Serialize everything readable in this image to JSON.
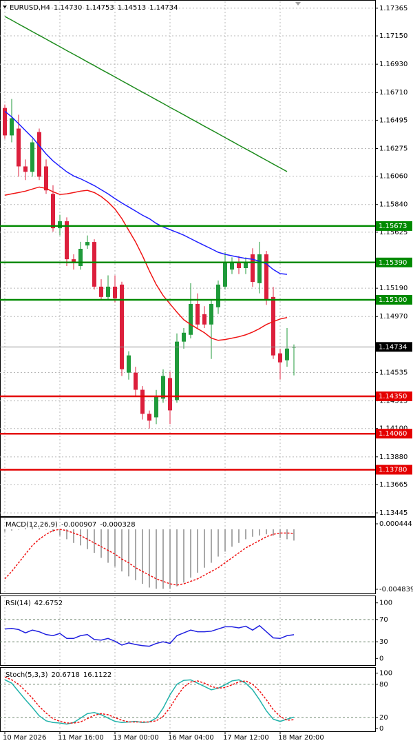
{
  "chart_data": [
    {
      "type": "candlestick",
      "title": "EURUSD,H4",
      "quote_labels": [
        "1.14730",
        "1.14753",
        "1.14513",
        "1.14734"
      ],
      "categories": [
        "10 Mar 2026",
        null,
        null,
        null,
        null,
        null,
        null,
        null,
        "11 Mar 16:00",
        null,
        null,
        null,
        null,
        null,
        null,
        null,
        "13 Mar 00:00",
        null,
        null,
        null,
        null,
        null,
        null,
        null,
        "16 Mar 04:00",
        null,
        null,
        null,
        null,
        null,
        null,
        null,
        "17 Mar 12:00",
        null,
        null,
        null,
        null,
        null,
        null,
        null,
        "18 Mar 20:00",
        null,
        null
      ],
      "open": [
        1.1659,
        1.16377,
        1.1643,
        1.16136,
        1.16094,
        1.16403,
        1.16136,
        1.15923,
        1.15656,
        1.1571,
        1.15415,
        1.15362,
        1.15522,
        1.15549,
        1.15202,
        1.15122,
        1.15202,
        1.15218,
        1.14534,
        1.14534,
        1.14401,
        1.14214,
        1.14187,
        1.14332,
        1.14492,
        1.14321,
        1.14775,
        1.14828,
        1.15068,
        1.14988,
        1.14908,
        1.15042,
        1.15202,
        1.15335,
        1.15389,
        1.15346,
        1.15453,
        1.15229,
        1.15453,
        1.15122,
        1.14684,
        1.1463,
        1.1473
      ],
      "high": [
        1.16617,
        1.1666,
        1.16537,
        1.1619,
        1.1635,
        1.1643,
        1.1619,
        1.1599,
        1.1576,
        1.1574,
        1.15453,
        1.1555,
        1.156,
        1.1557,
        1.1526,
        1.1529,
        1.1529,
        1.1524,
        1.147,
        1.1458,
        1.1443,
        1.1424,
        1.144,
        1.1456,
        1.1454,
        1.14839,
        1.1488,
        1.15229,
        1.1515,
        1.1505,
        1.151,
        1.1525,
        1.1547,
        1.1543,
        1.1544,
        1.1543,
        1.155,
        1.1555,
        1.1548,
        1.152,
        1.1472,
        1.1488,
        1.14753
      ],
      "low": [
        1.1635,
        1.16323,
        1.16056,
        1.1603,
        1.16056,
        1.1603,
        1.15923,
        1.1563,
        1.156,
        1.15362,
        1.15335,
        1.15335,
        1.15496,
        1.1518,
        1.151,
        1.151,
        1.1508,
        1.14508,
        1.1448,
        1.14348,
        1.1417,
        1.141,
        1.14134,
        1.143,
        1.14134,
        1.143,
        1.1472,
        1.148,
        1.1488,
        1.1488,
        1.14641,
        1.1499,
        1.1518,
        1.153,
        1.153,
        1.153,
        1.152,
        1.1515,
        1.1506,
        1.14641,
        1.14481,
        1.1458,
        1.14513
      ],
      "close": [
        1.16377,
        1.1651,
        1.16136,
        1.16094,
        1.16323,
        1.16056,
        1.1595,
        1.15656,
        1.1571,
        1.15415,
        1.15389,
        1.15496,
        1.15549,
        1.15202,
        1.15122,
        1.15202,
        1.15111,
        1.14561,
        1.14668,
        1.14401,
        1.14214,
        1.14161,
        1.14348,
        1.14508,
        1.14241,
        1.14775,
        1.14844,
        1.15068,
        1.14908,
        1.14908,
        1.15068,
        1.15218,
        1.15389,
        1.15389,
        1.15346,
        1.15389,
        1.15239,
        1.15453,
        1.15095,
        1.14668,
        1.14614,
        1.14721,
        1.14734
      ],
      "up_color": "#1f9a3a",
      "down_color": "#dc1f3c",
      "series": [
        {
          "color": "#1e8c1e",
          "values": [
            1.17301,
            1.17272,
            1.17242,
            1.17213,
            1.17183,
            1.17154,
            1.17125,
            1.17095,
            1.17066,
            1.17036,
            1.17007,
            1.16978,
            1.16948,
            1.16919,
            1.16889,
            1.1686,
            1.16831,
            1.16801,
            1.16772,
            1.16742,
            1.16713,
            1.16684,
            1.16654,
            1.16625,
            1.16595,
            1.16566,
            1.16537,
            1.16507,
            1.16478,
            1.16448,
            1.16419,
            1.1639,
            1.1636,
            1.16331,
            1.16301,
            1.16272,
            1.16243,
            1.16213,
            1.16184,
            1.16154,
            1.16125,
            1.16096,
            null
          ]
        },
        {
          "color": "#2020ff",
          "values": [
            1.16564,
            1.16521,
            1.16468,
            1.16414,
            1.16361,
            1.16297,
            1.16233,
            1.16179,
            1.16136,
            1.16094,
            1.16062,
            1.1604,
            1.16014,
            1.15987,
            1.15955,
            1.15923,
            1.15886,
            1.15852,
            1.15821,
            1.15789,
            1.15757,
            1.1573,
            1.15693,
            1.15666,
            1.15645,
            1.15624,
            1.15602,
            1.15575,
            1.15548,
            1.15522,
            1.15496,
            1.15469,
            1.15453,
            1.15442,
            1.15431,
            1.15421,
            1.15415,
            1.15399,
            1.15379,
            1.15335,
            1.15303,
            1.15298,
            null
          ]
        },
        {
          "color": "#f01414",
          "values": [
            1.15912,
            1.15923,
            1.15933,
            1.15944,
            1.1596,
            1.15976,
            1.15965,
            1.15939,
            1.15918,
            1.15923,
            1.15933,
            1.15944,
            1.1595,
            1.15933,
            1.15902,
            1.15859,
            1.15805,
            1.15731,
            1.1564,
            1.15549,
            1.15442,
            1.15325,
            1.15218,
            1.15133,
            1.15068,
            1.15004,
            1.14945,
            1.14908,
            1.14876,
            1.14844,
            1.14802,
            1.14785,
            1.14791,
            1.14802,
            1.14813,
            1.14828,
            1.14849,
            1.14876,
            1.14908,
            1.1493,
            1.14951,
            1.14962,
            null
          ]
        }
      ],
      "levels": [
        {
          "value": 1.15673,
          "color": "#008a00"
        },
        {
          "value": 1.1539,
          "label": "1.15390",
          "color": "#008a00"
        },
        {
          "value": 1.151,
          "label": "1.15100",
          "color": "#008a00"
        },
        {
          "value": 1.1435,
          "label": "1.14350",
          "color": "#e40000"
        },
        {
          "value": 1.1406,
          "label": "1.14060",
          "color": "#e40000"
        },
        {
          "value": 1.1378,
          "label": "1.13780",
          "color": "#e40000"
        }
      ],
      "ylim": [
        1.13424,
        1.17418
      ],
      "yticks": [
        1.17365,
        {
          "value": 1.1715,
          "label": "1.17150"
        },
        {
          "value": 1.1693,
          "label": "1.16930"
        },
        {
          "value": 1.1671,
          "label": "1.16710"
        },
        1.16495,
        1.16275,
        {
          "value": 1.1606,
          "label": "1.16060"
        },
        {
          "value": 1.1584,
          "label": "1.15840"
        },
        1.15625,
        {
          "value": 1.1519,
          "label": "1.15190"
        },
        {
          "value": 1.1497,
          "label": "1.14970"
        },
        1.14535,
        1.14315,
        {
          "value": 1.141,
          "label": "1.14100"
        },
        {
          "value": 1.1388,
          "label": "1.13880"
        },
        1.13665,
        1.13445
      ],
      "grid": true
    },
    {
      "type": "macd",
      "title": "MACD(12,26,9)",
      "series": [
        {
          "style": "histogram",
          "color": "#a8a8a8",
          "values": [
            -0.0002,
            -0.0001,
            0.0,
            0.0001,
            0.0002,
            0.0001,
            0.0,
            -0.0002,
            -0.0005,
            -0.0008,
            -0.0011,
            -0.0013,
            -0.0016,
            -0.0019,
            -0.0023,
            -0.0027,
            -0.003,
            -0.0034,
            -0.0038,
            -0.0041,
            -0.0044,
            -0.0047,
            -0.0048,
            -0.0048,
            -0.0048,
            -0.0046,
            -0.0043,
            -0.0039,
            -0.0035,
            -0.0031,
            -0.0027,
            -0.0022,
            -0.0018,
            -0.0014,
            -0.0011,
            -0.0008,
            -0.0006,
            -0.0005,
            -0.0004,
            -0.0005,
            -0.0007,
            -0.0008,
            -0.000907
          ]
        },
        {
          "style": "line",
          "dashed": true,
          "color": "#f01414",
          "values": [
            -0.004,
            -0.0034,
            -0.0027,
            -0.002,
            -0.0013,
            -0.0008,
            -0.0004,
            -0.0001,
            0.0,
            -0.0001,
            -0.0003,
            -0.0005,
            -0.0008,
            -0.0011,
            -0.0014,
            -0.0017,
            -0.002,
            -0.0024,
            -0.0027,
            -0.0031,
            -0.0034,
            -0.0037,
            -0.004,
            -0.0042,
            -0.0044,
            -0.0045,
            -0.0044,
            -0.0042,
            -0.004,
            -0.0037,
            -0.0034,
            -0.0031,
            -0.0027,
            -0.0023,
            -0.0019,
            -0.0015,
            -0.0012,
            -0.0009,
            -0.0006,
            -0.0004,
            -0.0003,
            -0.0003,
            -0.000328
          ]
        }
      ],
      "ylim": [
        -0.00512,
        0.00089
      ],
      "yticks": [
        -0.004839,
        0.000444
      ]
    },
    {
      "type": "line",
      "title": "RSI(14)",
      "series": [
        {
          "color": "#2020e0",
          "values": [
            53,
            54,
            52,
            46,
            51,
            48,
            43,
            41,
            45,
            36,
            36,
            41,
            43,
            34,
            33,
            36,
            31,
            24,
            28,
            25,
            23,
            22,
            27,
            30,
            27,
            41,
            46,
            51,
            48,
            48,
            49,
            53,
            57,
            57,
            55,
            58,
            51,
            59,
            48,
            37,
            36,
            41,
            42.6752
          ]
        }
      ],
      "ylim": [
        -10.8,
        110.8
      ],
      "yticks": [
        0,
        30,
        70,
        100
      ],
      "level_lines": [
        30,
        70
      ]
    },
    {
      "type": "line",
      "title": "Stoch(5,3,3)",
      "series": [
        {
          "color": "#20b2aa",
          "values": [
            88,
            82,
            67,
            52,
            38,
            23,
            14,
            11,
            10,
            8,
            11,
            19,
            27,
            29,
            25,
            19,
            13,
            11,
            12,
            13,
            11,
            12,
            19,
            37,
            61,
            80,
            87,
            88,
            82,
            76,
            70,
            73,
            79,
            86,
            88,
            82,
            70,
            52,
            32,
            17,
            13,
            17,
            20.6718
          ]
        },
        {
          "dashed": true,
          "color": "#f01414",
          "values": [
            93,
            88,
            80,
            68,
            55,
            40,
            28,
            18,
            13,
            10,
            10,
            12,
            18,
            24,
            27,
            25,
            20,
            15,
            12,
            12,
            12,
            12,
            14,
            22,
            38,
            58,
            75,
            84,
            86,
            82,
            76,
            73,
            74,
            79,
            84,
            86,
            80,
            68,
            52,
            34,
            22,
            15,
            16.1122
          ]
        }
      ],
      "ylim": [
        -3.6,
        108.3
      ],
      "yticks": [
        0,
        20,
        80,
        100
      ],
      "level_lines": [
        20,
        80
      ]
    }
  ]
}
